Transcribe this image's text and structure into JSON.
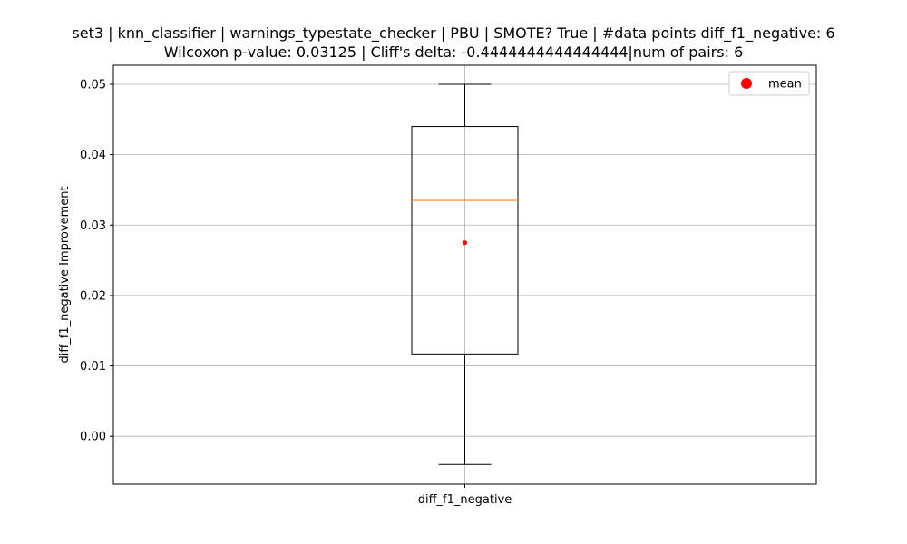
{
  "chart_data": {
    "type": "box",
    "title_line1": "set3 | knn_classifier | warnings_typestate_checker | PBU | SMOTE? True | #data points diff_f1_negative: 6",
    "title_line2": "Wilcoxon p-value: 0.03125 | Cliff's delta: -0.4444444444444444|num of pairs: 6",
    "xlabel": "",
    "ylabel": "diff_f1_negative Improvement",
    "categories": [
      "diff_f1_negative"
    ],
    "boxes": [
      {
        "name": "diff_f1_negative",
        "whisker_low": -0.004,
        "q1": 0.0117,
        "median": 0.0335,
        "q3": 0.044,
        "whisker_high": 0.05,
        "mean": 0.0275
      }
    ],
    "ylim": [
      -0.0068,
      0.0527
    ],
    "yticks": [
      0.0,
      0.01,
      0.02,
      0.03,
      0.04,
      0.05
    ],
    "ytick_labels": [
      "0.00",
      "0.01",
      "0.02",
      "0.03",
      "0.04",
      "0.05"
    ],
    "grid": true,
    "legend": {
      "position": "top-right",
      "entries": [
        {
          "label": "mean",
          "marker": "circle",
          "color": "#ff0000"
        }
      ]
    },
    "colors": {
      "box": "#000000",
      "median": "#ff7f0e",
      "mean": "#ff0000",
      "grid": "#b0b0b0"
    }
  }
}
